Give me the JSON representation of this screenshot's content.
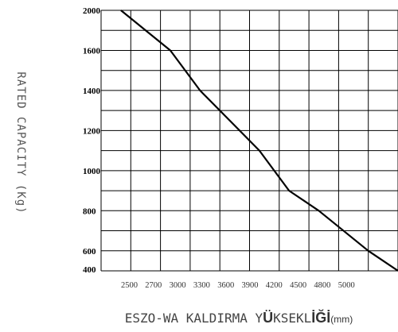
{
  "chart_data": {
    "type": "line",
    "title": "",
    "ylabel": "RATED CAPACITY (Kg)",
    "xlabel": {
      "part1": "ESZO-WA KALDIRMA Y",
      "part2": "Ü",
      "part3": "KSEKL",
      "part4": "İĞİ",
      "unit": "(mm)"
    },
    "y_ticks": [
      "2000",
      "1600",
      "1400",
      "1200",
      "1000",
      "800",
      "600",
      "400"
    ],
    "x_ticks": [
      "2500",
      "2700",
      "3000",
      "3300",
      "3600",
      "3900",
      "4200",
      "4500",
      "4800",
      "5000"
    ],
    "series": [
      {
        "x": [
          2500,
          3000,
          3300,
          3900,
          4200,
          4500,
          5000,
          5300
        ],
        "y": [
          2000,
          1600,
          1400,
          1000,
          800,
          700,
          500,
          400
        ]
      }
    ],
    "grid": true
  }
}
